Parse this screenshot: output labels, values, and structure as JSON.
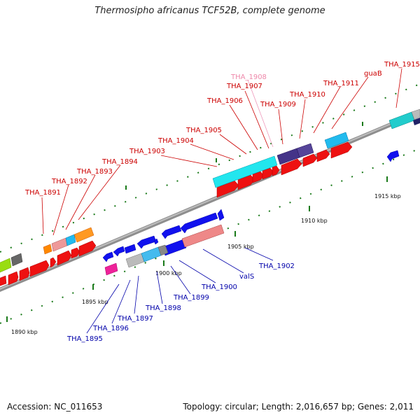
{
  "title": "Thermosipho africanus TCF52B, complete genome",
  "footer": {
    "accession": "Accession: NC_011653",
    "info": "Topology: circular; Length: 2,016,657 bp; Genes: 2,011"
  },
  "colors": {
    "forward_label": "#cc0000",
    "reverse_label": "#0000aa",
    "faded_label": "#ee88aa",
    "backbone": "#9a9a9a"
  },
  "ticks": [
    "1890 kbp",
    "1895 kbp",
    "1900 kbp",
    "1905 kbp",
    "1910 kbp",
    "1915 kbp"
  ],
  "forward_labels": [
    "THA_1891",
    "THA_1892",
    "THA_1893",
    "THA_1894",
    "THA_1903",
    "THA_1904",
    "THA_1905",
    "THA_1906",
    "THA_1907",
    "THA_1908",
    "THA_1909",
    "THA_1910",
    "THA_1911",
    "guaB",
    "THA_1915"
  ],
  "reverse_labels": [
    "THA_1895",
    "THA_1896",
    "THA_1897",
    "THA_1898",
    "THA_1899",
    "THA_1900",
    "valS",
    "THA_1902"
  ]
}
